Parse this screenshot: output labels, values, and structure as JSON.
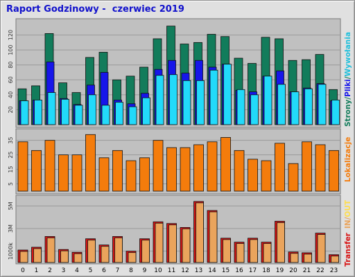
{
  "title": "Raport Godzinowy -  czerwiec 2019",
  "colors": {
    "background": "#e0e0e0",
    "plot_bg": "#c0c0c0",
    "title": "#1111cc",
    "strony": "#127c5b",
    "pliki": "#1616ea",
    "wywolania": "#22dafa",
    "lokalizacje": "#f47c0c",
    "transfer": "#d81616",
    "in_out": "#eaa45c",
    "out": "#ffde4c"
  },
  "chart_data": [
    {
      "type": "bar",
      "name": "hits",
      "categories": [
        "0",
        "1",
        "2",
        "3",
        "4",
        "5",
        "6",
        "7",
        "8",
        "9",
        "10",
        "11",
        "12",
        "13",
        "14",
        "15",
        "16",
        "17",
        "18",
        "19",
        "20",
        "21",
        "22",
        "23"
      ],
      "series": [
        {
          "name": "Strony",
          "values": [
            48,
            52,
            122,
            56,
            43,
            90,
            97,
            60,
            65,
            77,
            115,
            132,
            108,
            110,
            121,
            118,
            89,
            82,
            117,
            115,
            86,
            87,
            94,
            47
          ]
        },
        {
          "name": "Pliki",
          "values": [
            32,
            33,
            84,
            35,
            27,
            53,
            70,
            33,
            28,
            42,
            74,
            86,
            69,
            86,
            77,
            81,
            46,
            44,
            65,
            72,
            44,
            49,
            55,
            32
          ]
        },
        {
          "name": "Wywołania",
          "values": [
            32,
            33,
            43,
            34,
            26,
            40,
            26,
            30,
            24,
            36,
            66,
            67,
            59,
            59,
            73,
            81,
            47,
            40,
            65,
            54,
            44,
            48,
            54,
            33
          ]
        }
      ],
      "yticks": [
        20,
        40,
        60,
        80,
        100,
        120
      ],
      "ylim": [
        0,
        140
      ],
      "legend_label": {
        "strony": "Strony",
        "sep1": "/",
        "pliki": "Pliki",
        "sep2": "/",
        "wywolania": "Wywołania"
      }
    },
    {
      "type": "bar",
      "name": "visits",
      "categories": [
        "0",
        "1",
        "2",
        "3",
        "4",
        "5",
        "6",
        "7",
        "8",
        "9",
        "10",
        "11",
        "12",
        "13",
        "14",
        "15",
        "16",
        "17",
        "18",
        "19",
        "20",
        "21",
        "22",
        "23"
      ],
      "series": [
        {
          "name": "Lokalizacje",
          "values": [
            34,
            28,
            35,
            25,
            25,
            39,
            23,
            28,
            21,
            23,
            35,
            30,
            30,
            32,
            34,
            37,
            28,
            22,
            21,
            33,
            19,
            34,
            32,
            28
          ]
        }
      ],
      "yticks": [
        5,
        15,
        25,
        35
      ],
      "ylim": [
        0,
        42
      ],
      "legend_label": "Lokalizacje"
    },
    {
      "type": "bar",
      "name": "transfer",
      "categories": [
        "0",
        "1",
        "2",
        "3",
        "4",
        "5",
        "6",
        "7",
        "8",
        "9",
        "10",
        "11",
        "12",
        "13",
        "14",
        "15",
        "16",
        "17",
        "18",
        "19",
        "20",
        "21",
        "22",
        "23"
      ],
      "series": [
        {
          "name": "Transfer",
          "values": [
            1100,
            1350,
            2300,
            1150,
            900,
            2100,
            1550,
            2300,
            1000,
            2100,
            3600,
            3450,
            3100,
            5400,
            4600,
            2150,
            1800,
            2150,
            1800,
            3650,
            930,
            860,
            2600,
            690
          ]
        }
      ],
      "yticks": [
        1000,
        3000,
        5000
      ],
      "ytick_labels": [
        "1000k",
        "3M",
        "5M"
      ],
      "ylim": [
        0,
        5700
      ],
      "legend_label": {
        "transfer": "Transfer",
        "in": "IN",
        "sep": "/",
        "out": "OUT"
      }
    }
  ]
}
